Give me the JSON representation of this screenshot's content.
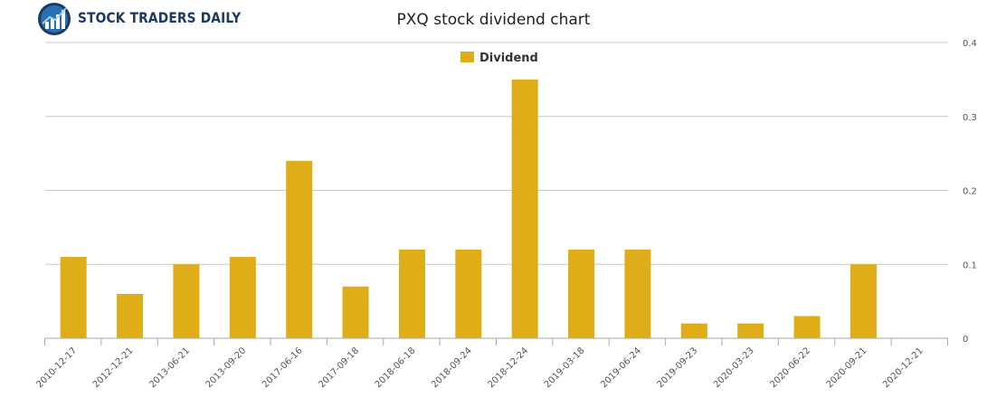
{
  "brand": {
    "name": "STOCK TRADERS DAILY"
  },
  "chart_data": {
    "type": "bar",
    "title": "PXQ stock dividend chart",
    "xlabel": "",
    "ylabel": "",
    "categories": [
      "2010-12-17",
      "2012-12-21",
      "2013-06-21",
      "2013-09-20",
      "2017-06-16",
      "2017-09-18",
      "2018-06-18",
      "2018-09-24",
      "2018-12-24",
      "2019-03-18",
      "2019-06-24",
      "2019-09-23",
      "2020-03-23",
      "2020-06-22",
      "2020-09-21",
      "2020-12-21"
    ],
    "series": [
      {
        "name": "Dividend",
        "color": "#dfad18",
        "values": [
          0.11,
          0.06,
          0.1,
          0.11,
          0.24,
          0.07,
          0.12,
          0.12,
          0.35,
          0.12,
          0.12,
          0.02,
          0.02,
          0.03,
          0.1,
          0
        ]
      }
    ],
    "ylim": [
      0,
      0.4
    ],
    "yticks": [
      "0",
      "0.1",
      "0.2",
      "0.3",
      "0.4"
    ],
    "grid": true,
    "legend": "top-center",
    "y_axis_side": "right"
  }
}
